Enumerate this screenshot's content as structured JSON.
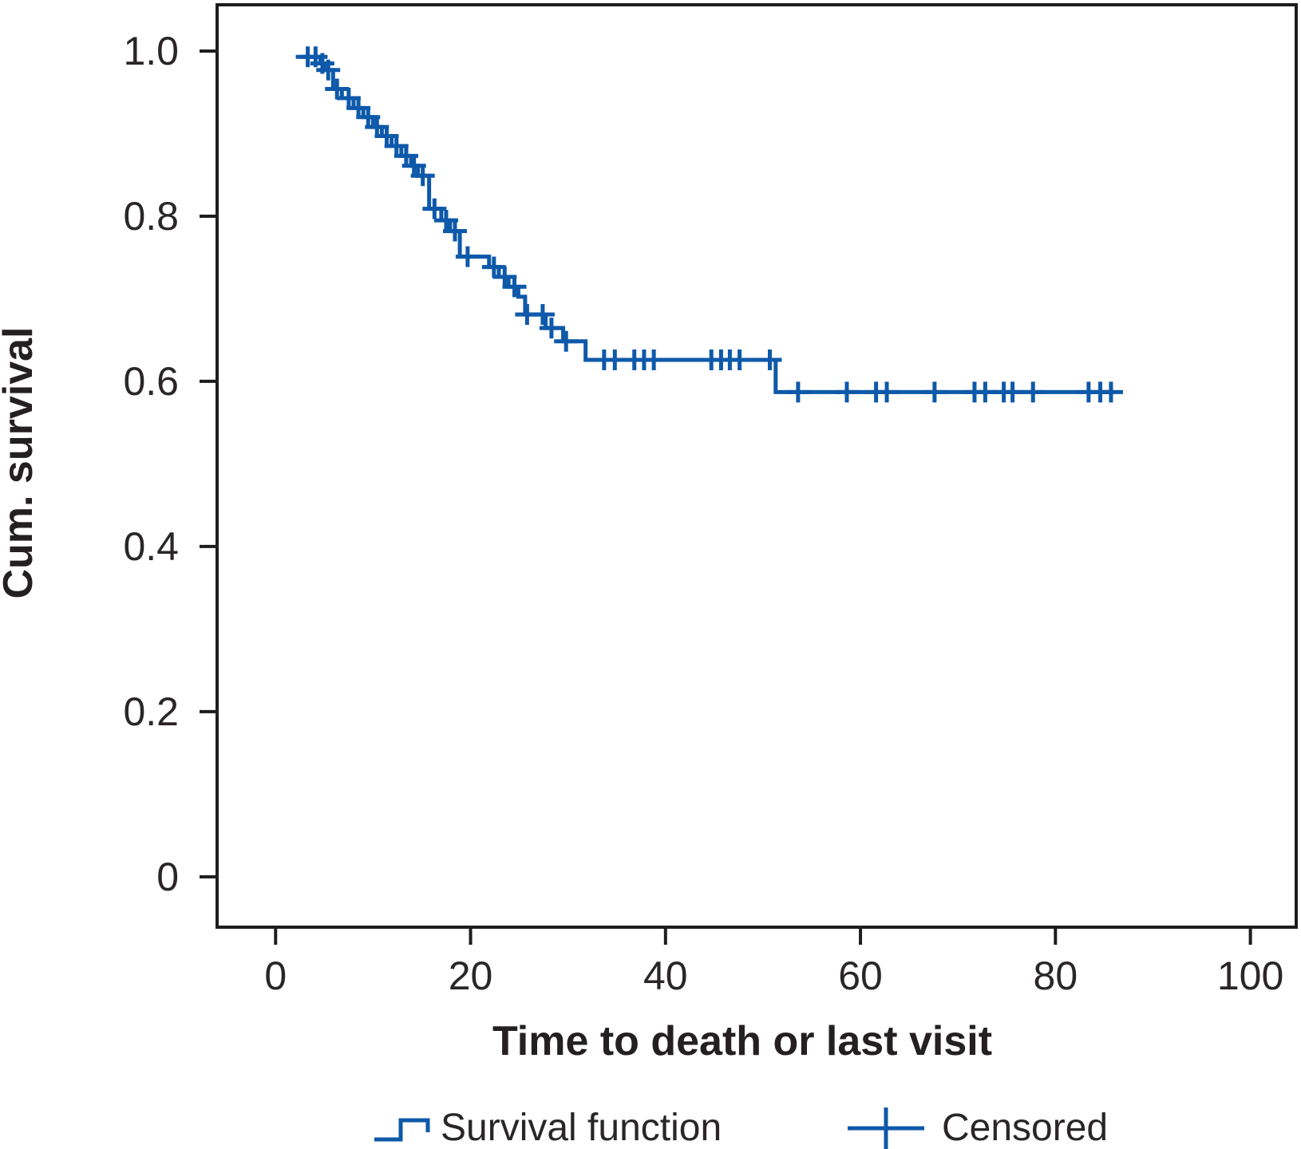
{
  "chart_data": {
    "type": "line",
    "subtype": "kaplan-meier-step-function",
    "title": "",
    "xlabel": "Time to death or last visit",
    "ylabel": "Cum. survival",
    "xlim": [
      -6,
      104.7
    ],
    "ylim": [
      -0.061,
      1.056
    ],
    "grid": false,
    "xticks": {
      "values": [
        0,
        20,
        40,
        60,
        80,
        100
      ],
      "labels": [
        "0",
        "20",
        "40",
        "60",
        "80",
        "100"
      ]
    },
    "yticks": {
      "values": [
        0,
        0.2,
        0.4,
        0.6,
        0.8,
        1.0
      ],
      "labels": [
        "0",
        "0.2",
        "0.4",
        "0.6",
        "0.8",
        "1.0"
      ]
    },
    "line_color": "#0e59a9",
    "axis_color": "#1d1d1f",
    "text_color": "#2a2627",
    "series": [
      {
        "name": "Survival function",
        "step_points": [
          {
            "t": 2.5,
            "s": 0.993
          },
          {
            "t": 4.6,
            "s": 0.985
          },
          {
            "t": 5.0,
            "s": 0.977
          },
          {
            "t": 5.9,
            "s": 0.954
          },
          {
            "t": 6.8,
            "s": 0.943
          },
          {
            "t": 8.0,
            "s": 0.931
          },
          {
            "t": 9.0,
            "s": 0.92
          },
          {
            "t": 10.0,
            "s": 0.908
          },
          {
            "t": 10.9,
            "s": 0.897
          },
          {
            "t": 11.9,
            "s": 0.885
          },
          {
            "t": 12.9,
            "s": 0.873
          },
          {
            "t": 13.9,
            "s": 0.861
          },
          {
            "t": 14.6,
            "s": 0.849
          },
          {
            "t": 15.75,
            "s": 0.809
          },
          {
            "t": 17.0,
            "s": 0.795
          },
          {
            "t": 17.9,
            "s": 0.782
          },
          {
            "t": 18.9,
            "s": 0.751
          },
          {
            "t": 21.9,
            "s": 0.7385
          },
          {
            "t": 22.9,
            "s": 0.7265
          },
          {
            "t": 23.9,
            "s": 0.7145
          },
          {
            "t": 24.9,
            "s": 0.7025
          },
          {
            "t": 25.6,
            "s": 0.681
          },
          {
            "t": 27.7,
            "s": 0.6645
          },
          {
            "t": 29.5,
            "s": 0.6485
          },
          {
            "t": 31.8,
            "s": 0.626
          },
          {
            "t": 51.3,
            "s": 0.587
          }
        ],
        "curve_end_t": 86.0
      }
    ],
    "censored_points": [
      [
        3.3,
        0.993
      ],
      [
        4.1,
        0.993
      ],
      [
        4.8,
        0.985
      ],
      [
        5.4,
        0.977
      ],
      [
        6.3,
        0.954
      ],
      [
        7.5,
        0.943
      ],
      [
        8.5,
        0.931
      ],
      [
        9.5,
        0.92
      ],
      [
        10.4,
        0.908
      ],
      [
        11.4,
        0.897
      ],
      [
        12.4,
        0.885
      ],
      [
        13.4,
        0.873
      ],
      [
        14.2,
        0.861
      ],
      [
        15.1,
        0.849
      ],
      [
        16.3,
        0.809
      ],
      [
        17.5,
        0.795
      ],
      [
        18.4,
        0.782
      ],
      [
        19.7,
        0.751
      ],
      [
        22.4,
        0.7385
      ],
      [
        23.5,
        0.7265
      ],
      [
        24.5,
        0.7145
      ],
      [
        25.8,
        0.681
      ],
      [
        27.4,
        0.681
      ],
      [
        28.3,
        0.6645
      ],
      [
        29.8,
        0.6485
      ],
      [
        33.7,
        0.626
      ],
      [
        34.8,
        0.626
      ],
      [
        36.8,
        0.626
      ],
      [
        37.8,
        0.626
      ],
      [
        38.8,
        0.626
      ],
      [
        44.7,
        0.626
      ],
      [
        45.7,
        0.626
      ],
      [
        46.6,
        0.626
      ],
      [
        47.6,
        0.626
      ],
      [
        50.7,
        0.626
      ],
      [
        53.6,
        0.587
      ],
      [
        58.6,
        0.587
      ],
      [
        61.6,
        0.587
      ],
      [
        62.7,
        0.587
      ],
      [
        67.6,
        0.587
      ],
      [
        71.7,
        0.587
      ],
      [
        72.8,
        0.587
      ],
      [
        74.7,
        0.587
      ],
      [
        75.6,
        0.587
      ],
      [
        77.7,
        0.587
      ],
      [
        83.4,
        0.587
      ],
      [
        84.6,
        0.587
      ],
      [
        85.7,
        0.587
      ]
    ],
    "legend": {
      "position": "bottom",
      "items": [
        {
          "symbol": "step-line",
          "label": "Survival function"
        },
        {
          "symbol": "plus",
          "label": "Censored"
        }
      ]
    }
  }
}
